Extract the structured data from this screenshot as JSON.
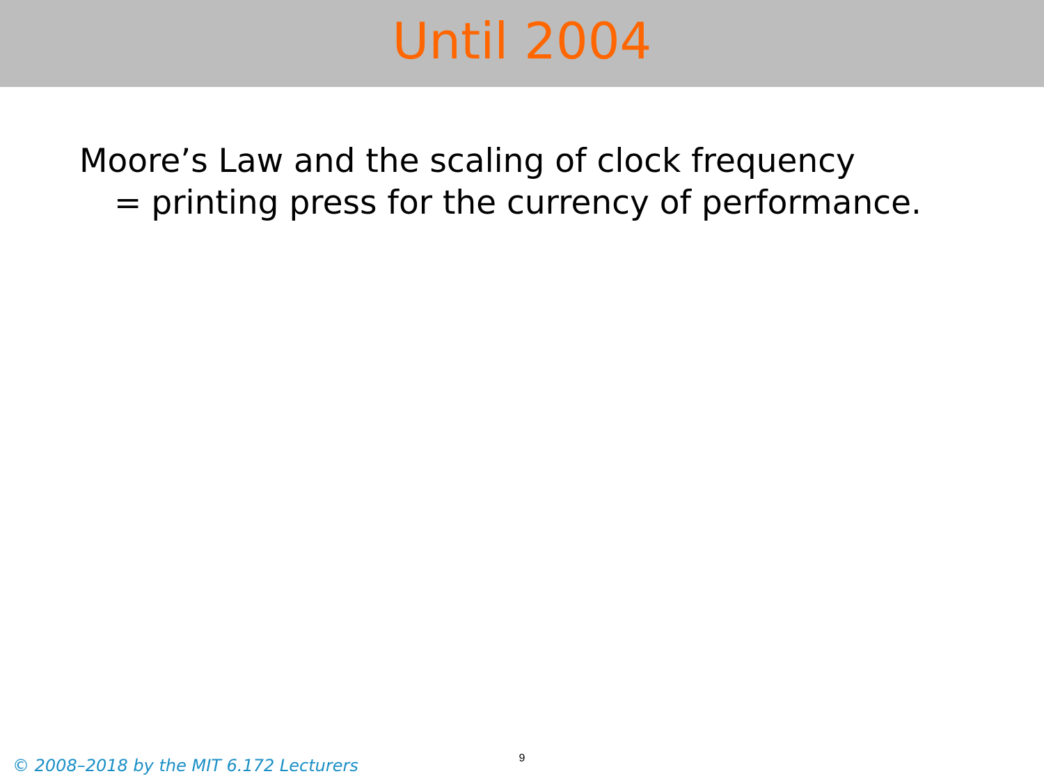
{
  "slide": {
    "title": "Until 2004",
    "body_line1": "Moore’s Law and the scaling of clock frequency",
    "body_line2_operator": "=",
    "body_line2_text": "printing press for the currency of performance.",
    "page_number": "9",
    "copyright": "© 2008–2018 by the MIT 6.172 Lecturers"
  },
  "colors": {
    "title_bar": "#bdbdbd",
    "title_text": "#ff6600",
    "copyright_text": "#1a8fc6"
  }
}
